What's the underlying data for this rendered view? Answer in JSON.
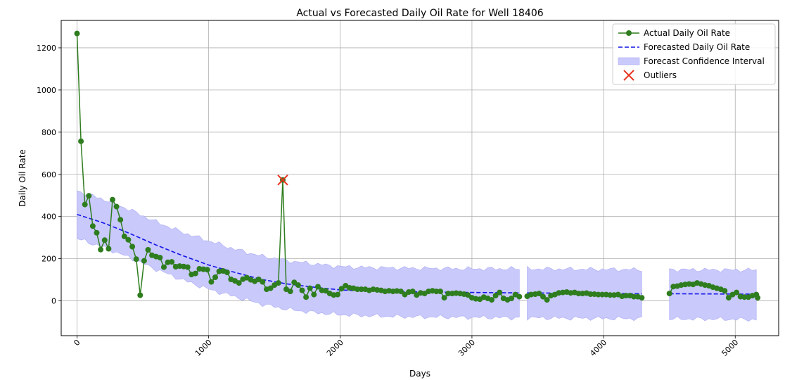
{
  "chart_data": {
    "type": "line",
    "title": "Actual vs Forecasted Daily Oil Rate for Well 18406",
    "xlabel": "Days",
    "ylabel": "Daily Oil Rate",
    "xlim": [
      -120,
      5330
    ],
    "ylim": [
      -165,
      1330
    ],
    "x_ticks": [
      0,
      1000,
      2000,
      3000,
      4000,
      5000
    ],
    "y_ticks": [
      0,
      200,
      400,
      600,
      800,
      1000,
      1200
    ],
    "grid": true,
    "legend_position": "top-right",
    "colors": {
      "actual": "#2e7d1e",
      "forecast": "#1515e8",
      "band": "#c9c9fb",
      "band_edge": "#aaaaf5",
      "outlier": "#e8321e"
    },
    "legend": [
      {
        "label": "Actual Daily Oil Rate",
        "kind": "line-marker"
      },
      {
        "label": "Forecasted Daily Oil Rate",
        "kind": "dashed"
      },
      {
        "label": "Forecast Confidence Interval",
        "kind": "patch"
      },
      {
        "label": "Outliers",
        "kind": "x-marker"
      }
    ],
    "series": [
      {
        "name": "Actual Daily Oil Rate",
        "segments": [
          [
            [
              0,
              1268
            ],
            [
              30,
              757
            ],
            [
              60,
              457
            ],
            [
              90,
              498
            ],
            [
              120,
              355
            ],
            [
              150,
              323
            ],
            [
              180,
              243
            ],
            [
              210,
              288
            ],
            [
              240,
              247
            ],
            [
              270,
              480
            ],
            [
              300,
              447
            ],
            [
              330,
              385
            ],
            [
              360,
              306
            ],
            [
              390,
              290
            ],
            [
              420,
              257
            ],
            [
              450,
              198
            ],
            [
              480,
              27
            ],
            [
              510,
              190
            ],
            [
              540,
              242
            ],
            [
              570,
              216
            ],
            [
              600,
              210
            ],
            [
              630,
              205
            ],
            [
              660,
              160
            ],
            [
              690,
              183
            ],
            [
              720,
              185
            ],
            [
              750,
              162
            ],
            [
              780,
              165
            ],
            [
              810,
              163
            ],
            [
              840,
              160
            ],
            [
              870,
              125
            ],
            [
              900,
              130
            ],
            [
              930,
              152
            ],
            [
              960,
              150
            ],
            [
              990,
              148
            ],
            [
              1020,
              90
            ],
            [
              1050,
              112
            ],
            [
              1080,
              140
            ],
            [
              1110,
              142
            ],
            [
              1140,
              135
            ],
            [
              1170,
              102
            ],
            [
              1200,
              95
            ],
            [
              1230,
              85
            ],
            [
              1260,
              103
            ],
            [
              1290,
              110
            ],
            [
              1320,
              100
            ],
            [
              1350,
              93
            ],
            [
              1380,
              102
            ],
            [
              1410,
              90
            ],
            [
              1440,
              55
            ],
            [
              1470,
              60
            ],
            [
              1500,
              75
            ],
            [
              1530,
              85
            ],
            [
              1563,
              573
            ],
            [
              1590,
              55
            ],
            [
              1620,
              45
            ],
            [
              1650,
              88
            ],
            [
              1680,
              75
            ],
            [
              1710,
              50
            ],
            [
              1740,
              18
            ],
            [
              1770,
              60
            ],
            [
              1800,
              30
            ],
            [
              1830,
              67
            ],
            [
              1860,
              50
            ],
            [
              1890,
              48
            ],
            [
              1920,
              35
            ],
            [
              1950,
              28
            ],
            [
              1980,
              30
            ],
            [
              2010,
              58
            ],
            [
              2040,
              72
            ],
            [
              2070,
              62
            ],
            [
              2100,
              60
            ],
            [
              2130,
              55
            ],
            [
              2160,
              55
            ],
            [
              2190,
              55
            ],
            [
              2220,
              50
            ],
            [
              2250,
              55
            ],
            [
              2280,
              52
            ],
            [
              2310,
              50
            ],
            [
              2340,
              45
            ],
            [
              2370,
              48
            ],
            [
              2400,
              45
            ],
            [
              2430,
              47
            ],
            [
              2460,
              45
            ],
            [
              2490,
              30
            ],
            [
              2520,
              42
            ],
            [
              2550,
              45
            ],
            [
              2580,
              28
            ],
            [
              2610,
              38
            ],
            [
              2640,
              35
            ],
            [
              2670,
              45
            ],
            [
              2700,
              48
            ],
            [
              2730,
              45
            ],
            [
              2760,
              45
            ],
            [
              2790,
              15
            ],
            [
              2820,
              35
            ],
            [
              2850,
              35
            ],
            [
              2880,
              37
            ],
            [
              2910,
              35
            ],
            [
              2940,
              32
            ],
            [
              2970,
              28
            ],
            [
              3000,
              15
            ],
            [
              3030,
              10
            ],
            [
              3060,
              8
            ],
            [
              3090,
              18
            ],
            [
              3120,
              12
            ],
            [
              3150,
              5
            ],
            [
              3180,
              25
            ],
            [
              3210,
              40
            ],
            [
              3240,
              12
            ],
            [
              3270,
              5
            ],
            [
              3300,
              12
            ],
            [
              3330,
              30
            ],
            [
              3360,
              20
            ]
          ],
          [
            [
              3420,
              22
            ],
            [
              3450,
              30
            ],
            [
              3480,
              32
            ],
            [
              3510,
              35
            ],
            [
              3540,
              20
            ],
            [
              3570,
              5
            ],
            [
              3600,
              25
            ],
            [
              3630,
              30
            ],
            [
              3660,
              38
            ],
            [
              3690,
              40
            ],
            [
              3720,
              42
            ],
            [
              3750,
              38
            ],
            [
              3780,
              40
            ],
            [
              3810,
              35
            ],
            [
              3840,
              35
            ],
            [
              3870,
              37
            ],
            [
              3900,
              32
            ],
            [
              3930,
              32
            ],
            [
              3960,
              30
            ],
            [
              3990,
              30
            ],
            [
              4020,
              30
            ],
            [
              4050,
              28
            ],
            [
              4080,
              28
            ],
            [
              4110,
              30
            ],
            [
              4140,
              22
            ],
            [
              4170,
              25
            ],
            [
              4200,
              25
            ],
            [
              4230,
              20
            ],
            [
              4260,
              20
            ],
            [
              4290,
              15
            ]
          ],
          [
            [
              4500,
              35
            ],
            [
              4530,
              68
            ],
            [
              4560,
              70
            ],
            [
              4590,
              75
            ],
            [
              4620,
              78
            ],
            [
              4650,
              80
            ],
            [
              4680,
              78
            ],
            [
              4710,
              85
            ],
            [
              4740,
              80
            ],
            [
              4770,
              75
            ],
            [
              4800,
              72
            ],
            [
              4830,
              65
            ],
            [
              4860,
              60
            ],
            [
              4890,
              55
            ],
            [
              4920,
              48
            ],
            [
              4950,
              15
            ],
            [
              4980,
              30
            ],
            [
              5010,
              40
            ],
            [
              5040,
              20
            ],
            [
              5070,
              18
            ],
            [
              5100,
              18
            ],
            [
              5130,
              25
            ],
            [
              5160,
              30
            ],
            [
              5170,
              15
            ]
          ]
        ]
      },
      {
        "name": "Forecasted Daily Oil Rate",
        "segments": [
          [
            [
              0,
              410
            ],
            [
              200,
              370
            ],
            [
              400,
              320
            ],
            [
              600,
              265
            ],
            [
              800,
              215
            ],
            [
              1000,
              170
            ],
            [
              1200,
              135
            ],
            [
              1400,
              102
            ],
            [
              1600,
              80
            ],
            [
              1800,
              65
            ],
            [
              2000,
              52
            ],
            [
              2200,
              47
            ],
            [
              2500,
              43
            ],
            [
              3000,
              40
            ],
            [
              3360,
              38
            ]
          ],
          [
            [
              3420,
              38
            ],
            [
              3800,
              36
            ],
            [
              4290,
              34
            ]
          ],
          [
            [
              4500,
              34
            ],
            [
              4800,
              33
            ],
            [
              5170,
              32
            ]
          ]
        ]
      }
    ],
    "confidence_interval": {
      "segments": [
        {
          "x": [
            0,
            200,
            400,
            600,
            800,
            1000,
            1200,
            1400,
            1600,
            1800,
            2000,
            2200,
            2500,
            3000,
            3360
          ],
          "lower": [
            295,
            255,
            205,
            150,
            100,
            55,
            20,
            -15,
            -40,
            -55,
            -65,
            -70,
            -75,
            -78,
            -80
          ],
          "upper": [
            522,
            482,
            432,
            375,
            325,
            285,
            245,
            212,
            190,
            175,
            162,
            158,
            155,
            152,
            152
          ]
        },
        {
          "x": [
            3420,
            3800,
            4290
          ],
          "lower": [
            -80,
            -82,
            -84
          ],
          "upper": [
            152,
            150,
            148
          ]
        },
        {
          "x": [
            4500,
            4800,
            5170
          ],
          "lower": [
            -85,
            -86,
            -88
          ],
          "upper": [
            148,
            147,
            146
          ]
        }
      ]
    },
    "outliers": [
      {
        "x": 1563,
        "y": 573
      }
    ]
  }
}
